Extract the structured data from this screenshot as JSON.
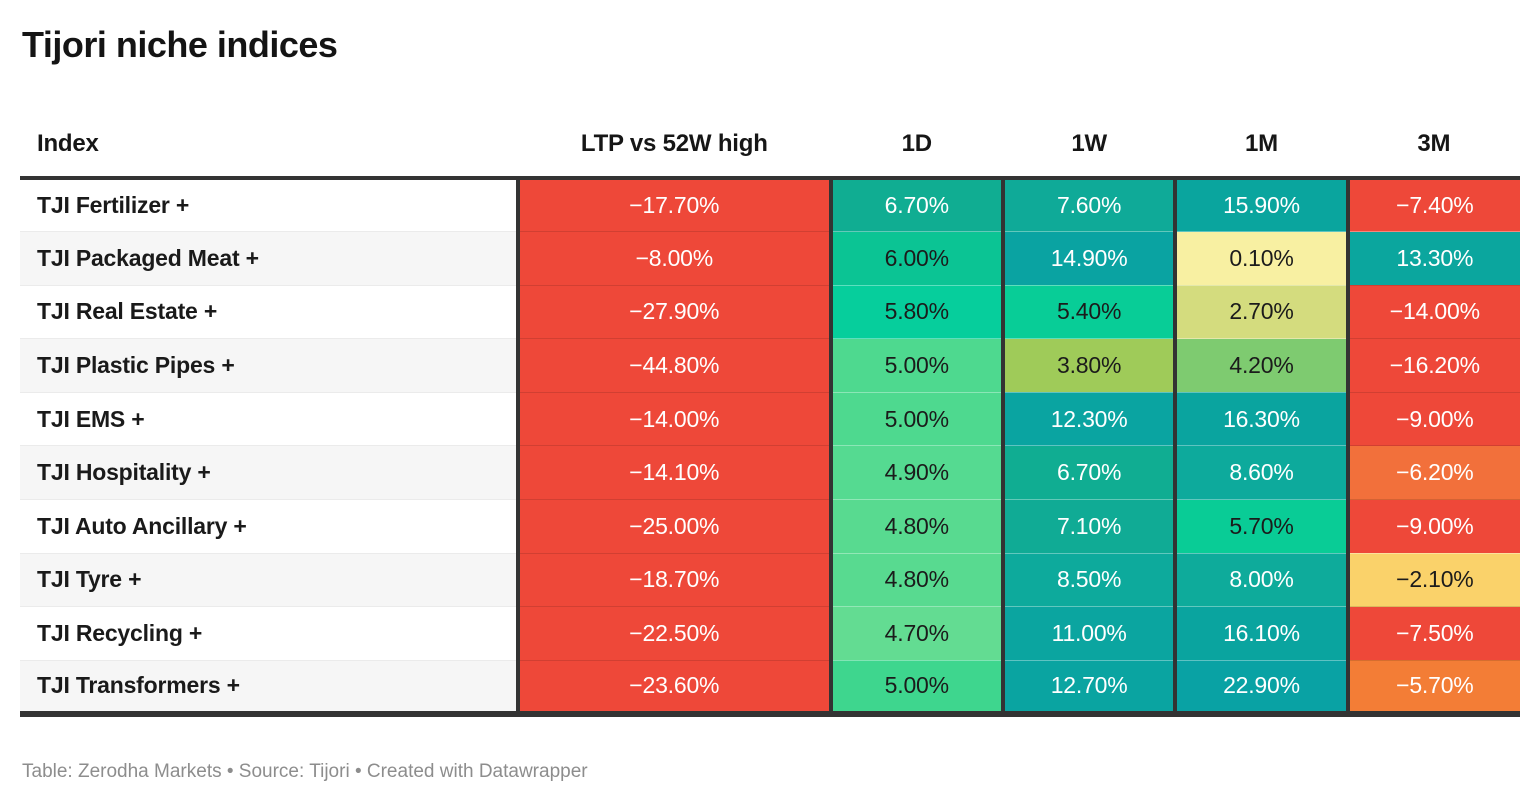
{
  "title": "Tijori niche indices",
  "footer": {
    "text": "Table: Zerodha Markets • Source: Tijori • Created with Datawrapper"
  },
  "colors": {
    "border_dark": "#333333",
    "row_alt_bg": "#f6f6f6",
    "red": "#ee4839",
    "orange": "#f2703b",
    "amber": "#fad26a",
    "pale_yellow": "#f8f0a2",
    "teal_dark": "#09a2a4"
  },
  "table": {
    "columns": [
      {
        "key": "index",
        "label": "Index"
      },
      {
        "key": "ltp",
        "label": "LTP vs 52W high"
      },
      {
        "key": "1d",
        "label": "1D"
      },
      {
        "key": "1w",
        "label": "1W"
      },
      {
        "key": "1m",
        "label": "1M"
      },
      {
        "key": "3m",
        "label": "3M"
      }
    ],
    "rows": [
      {
        "index": "TJI Fertilizer +",
        "cells": [
          {
            "v": "−17.70%",
            "bg": "#ee4839",
            "fg": "#ffffff"
          },
          {
            "v": "6.70%",
            "bg": "#10ad92",
            "fg": "#ffffff"
          },
          {
            "v": "7.60%",
            "bg": "#0faa98",
            "fg": "#ffffff"
          },
          {
            "v": "15.90%",
            "bg": "#0aa59e",
            "fg": "#ffffff"
          },
          {
            "v": "−7.40%",
            "bg": "#ee4839",
            "fg": "#ffffff"
          }
        ]
      },
      {
        "index": "TJI Packaged Meat +",
        "cells": [
          {
            "v": "−8.00%",
            "bg": "#ee4839",
            "fg": "#ffffff"
          },
          {
            "v": "6.00%",
            "bg": "#0bc494",
            "fg": "#1b1b1b"
          },
          {
            "v": "14.90%",
            "bg": "#0aa3a2",
            "fg": "#ffffff"
          },
          {
            "v": "0.10%",
            "bg": "#f8f0a2",
            "fg": "#1b1b1b"
          },
          {
            "v": "13.30%",
            "bg": "#0ba69e",
            "fg": "#ffffff"
          }
        ]
      },
      {
        "index": "TJI Real Estate +",
        "cells": [
          {
            "v": "−27.90%",
            "bg": "#ee4839",
            "fg": "#ffffff"
          },
          {
            "v": "5.80%",
            "bg": "#06ce9c",
            "fg": "#1b1b1b"
          },
          {
            "v": "5.40%",
            "bg": "#08cd97",
            "fg": "#1b1b1b"
          },
          {
            "v": "2.70%",
            "bg": "#d4dc7e",
            "fg": "#1b1b1b"
          },
          {
            "v": "−14.00%",
            "bg": "#ee4839",
            "fg": "#ffffff"
          }
        ]
      },
      {
        "index": "TJI Plastic Pipes +",
        "cells": [
          {
            "v": "−44.80%",
            "bg": "#ee4839",
            "fg": "#ffffff"
          },
          {
            "v": "5.00%",
            "bg": "#4ed98f",
            "fg": "#1b1b1b"
          },
          {
            "v": "3.80%",
            "bg": "#9fcb59",
            "fg": "#1b1b1b"
          },
          {
            "v": "4.20%",
            "bg": "#7ecb70",
            "fg": "#1b1b1b"
          },
          {
            "v": "−16.20%",
            "bg": "#ee4839",
            "fg": "#ffffff"
          }
        ]
      },
      {
        "index": "TJI EMS +",
        "cells": [
          {
            "v": "−14.00%",
            "bg": "#ee4839",
            "fg": "#ffffff"
          },
          {
            "v": "5.00%",
            "bg": "#4ed98f",
            "fg": "#1b1b1b"
          },
          {
            "v": "12.30%",
            "bg": "#0aa4a1",
            "fg": "#ffffff"
          },
          {
            "v": "16.30%",
            "bg": "#0aa49f",
            "fg": "#ffffff"
          },
          {
            "v": "−9.00%",
            "bg": "#ee4839",
            "fg": "#ffffff"
          }
        ]
      },
      {
        "index": "TJI Hospitality +",
        "cells": [
          {
            "v": "−14.10%",
            "bg": "#ee4839",
            "fg": "#ffffff"
          },
          {
            "v": "4.90%",
            "bg": "#55da91",
            "fg": "#1b1b1b"
          },
          {
            "v": "6.70%",
            "bg": "#10ad92",
            "fg": "#ffffff"
          },
          {
            "v": "8.60%",
            "bg": "#0daa9c",
            "fg": "#ffffff"
          },
          {
            "v": "−6.20%",
            "bg": "#f2703b",
            "fg": "#ffffff"
          }
        ]
      },
      {
        "index": "TJI Auto Ancillary +",
        "cells": [
          {
            "v": "−25.00%",
            "bg": "#ee4839",
            "fg": "#ffffff"
          },
          {
            "v": "4.80%",
            "bg": "#58da90",
            "fg": "#1b1b1b"
          },
          {
            "v": "7.10%",
            "bg": "#10ab95",
            "fg": "#ffffff"
          },
          {
            "v": "5.70%",
            "bg": "#09cc96",
            "fg": "#1b1b1b"
          },
          {
            "v": "−9.00%",
            "bg": "#ee4839",
            "fg": "#ffffff"
          }
        ]
      },
      {
        "index": "TJI Tyre +",
        "cells": [
          {
            "v": "−18.70%",
            "bg": "#ee4839",
            "fg": "#ffffff"
          },
          {
            "v": "4.80%",
            "bg": "#58da90",
            "fg": "#1b1b1b"
          },
          {
            "v": "8.50%",
            "bg": "#0daa9c",
            "fg": "#ffffff"
          },
          {
            "v": "8.00%",
            "bg": "#0eab9b",
            "fg": "#ffffff"
          },
          {
            "v": "−2.10%",
            "bg": "#fad26a",
            "fg": "#1b1b1b"
          }
        ]
      },
      {
        "index": "TJI Recycling +",
        "cells": [
          {
            "v": "−22.50%",
            "bg": "#ee4839",
            "fg": "#ffffff"
          },
          {
            "v": "4.70%",
            "bg": "#63dc92",
            "fg": "#1b1b1b"
          },
          {
            "v": "11.00%",
            "bg": "#0ba5a0",
            "fg": "#ffffff"
          },
          {
            "v": "16.10%",
            "bg": "#0aa49f",
            "fg": "#ffffff"
          },
          {
            "v": "−7.50%",
            "bg": "#ee4839",
            "fg": "#ffffff"
          }
        ]
      },
      {
        "index": "TJI Transformers +",
        "cells": [
          {
            "v": "−23.60%",
            "bg": "#ee4839",
            "fg": "#ffffff"
          },
          {
            "v": "5.00%",
            "bg": "#3ed68e",
            "fg": "#1b1b1b"
          },
          {
            "v": "12.70%",
            "bg": "#0aa4a1",
            "fg": "#ffffff"
          },
          {
            "v": "22.90%",
            "bg": "#09a2a4",
            "fg": "#ffffff"
          },
          {
            "v": "−5.70%",
            "bg": "#f37d36",
            "fg": "#ffffff"
          }
        ]
      }
    ]
  },
  "chart_data": {
    "type": "table",
    "title": "Tijori niche indices",
    "columns": [
      "Index",
      "LTP vs 52W high",
      "1D",
      "1W",
      "1M",
      "3M"
    ],
    "rows": [
      [
        "TJI Fertilizer +",
        -17.7,
        6.7,
        7.6,
        15.9,
        -7.4
      ],
      [
        "TJI Packaged Meat +",
        -8.0,
        6.0,
        14.9,
        0.1,
        13.3
      ],
      [
        "TJI Real Estate +",
        -27.9,
        5.8,
        5.4,
        2.7,
        -14.0
      ],
      [
        "TJI Plastic Pipes +",
        -44.8,
        5.0,
        3.8,
        4.2,
        -16.2
      ],
      [
        "TJI EMS +",
        -14.0,
        5.0,
        12.3,
        16.3,
        -9.0
      ],
      [
        "TJI Hospitality +",
        -14.1,
        4.9,
        6.7,
        8.6,
        -6.2
      ],
      [
        "TJI Auto Ancillary +",
        -25.0,
        4.8,
        7.1,
        5.7,
        -9.0
      ],
      [
        "TJI Tyre +",
        -18.7,
        4.8,
        8.5,
        8.0,
        -2.1
      ],
      [
        "TJI Recycling +",
        -22.5,
        4.7,
        11.0,
        16.1,
        -7.5
      ],
      [
        "TJI Transformers +",
        -23.6,
        5.0,
        12.7,
        22.9,
        -5.7
      ]
    ],
    "units": "percent",
    "color_scale": "diverging red-yellow-green heatmap on value cells",
    "source": "Table: Zerodha Markets • Source: Tijori • Created with Datawrapper"
  }
}
